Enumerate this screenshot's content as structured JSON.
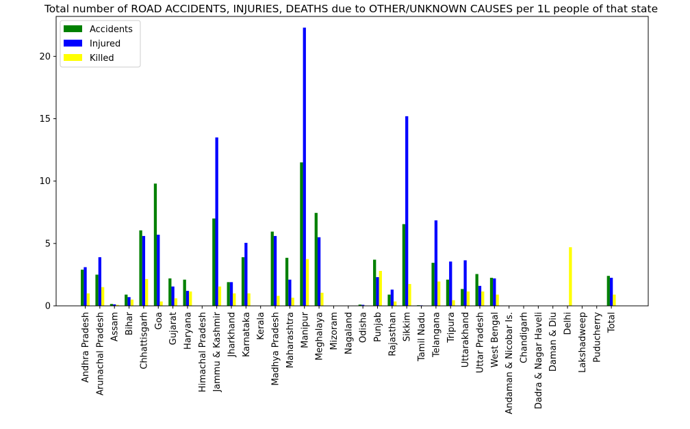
{
  "chart_data": {
    "type": "bar",
    "title": "Total number of ROAD ACCIDENTS, INJURIES, DEATHS due to OTHER/UNKNOWN CAUSES per 1L people of that state",
    "xlabel": "",
    "ylabel": "",
    "ylim": [
      0,
      23.2
    ],
    "yticks": [
      0,
      5,
      10,
      15,
      20
    ],
    "grid": false,
    "legend_position": "top-left",
    "categories": [
      "Andhra Pradesh",
      "Arunachal Pradesh",
      "Assam",
      "Bihar",
      "Chhattisgarh",
      "Goa",
      "Gujarat",
      "Haryana",
      "Himachal Pradesh",
      "Jammu & Kashmir",
      "Jharkhand",
      "Karnataka",
      "Kerala",
      "Madhya Pradesh",
      "Maharashtra",
      "Manipur",
      "Meghalaya",
      "Mizoram",
      "Nagaland",
      "Odisha",
      "Punjab",
      "Rajasthan",
      "Sikkim",
      "Tamil Nadu",
      "Telangana",
      "Tripura",
      "Uttarakhand",
      "Uttar Pradesh",
      "West Bengal",
      "Andaman & Nicobar Is.",
      "Chandigarh",
      "Dadra & Nagar Haveli",
      "Daman & Diu",
      "Delhi",
      "Lakshadweep",
      "Puducherry",
      "Total"
    ],
    "series": [
      {
        "name": "Accidents",
        "color": "#008000",
        "values": [
          2.9,
          2.5,
          0.15,
          0.9,
          6.05,
          9.8,
          2.2,
          2.1,
          0,
          7.0,
          1.9,
          3.9,
          0,
          5.95,
          3.85,
          11.5,
          7.45,
          0,
          0,
          0.1,
          3.7,
          0.9,
          6.55,
          0.05,
          3.45,
          2.1,
          1.35,
          2.55,
          2.25,
          0,
          0,
          0,
          0,
          0,
          0,
          0,
          2.4
        ]
      },
      {
        "name": "Injured",
        "color": "#0000ff",
        "values": [
          3.1,
          3.9,
          0.12,
          0.7,
          5.6,
          5.7,
          1.55,
          1.2,
          0,
          13.5,
          1.9,
          5.05,
          0,
          5.6,
          2.1,
          22.3,
          5.5,
          0,
          0,
          0.08,
          2.3,
          1.3,
          15.2,
          0.04,
          6.85,
          3.55,
          3.65,
          1.6,
          2.2,
          0,
          0,
          0,
          0,
          0,
          0,
          0,
          2.25
        ]
      },
      {
        "name": "Killed",
        "color": "#ffff00",
        "values": [
          1.0,
          1.5,
          0.08,
          0.5,
          2.15,
          0.35,
          0.6,
          1.15,
          0,
          1.55,
          1.0,
          1.0,
          0,
          0.8,
          0.65,
          3.75,
          1.05,
          0,
          0,
          0.03,
          2.8,
          0.35,
          1.75,
          0.02,
          1.95,
          0.45,
          1.15,
          1.15,
          0.9,
          0,
          0,
          0,
          0,
          4.7,
          0,
          0,
          0.9
        ]
      }
    ]
  }
}
